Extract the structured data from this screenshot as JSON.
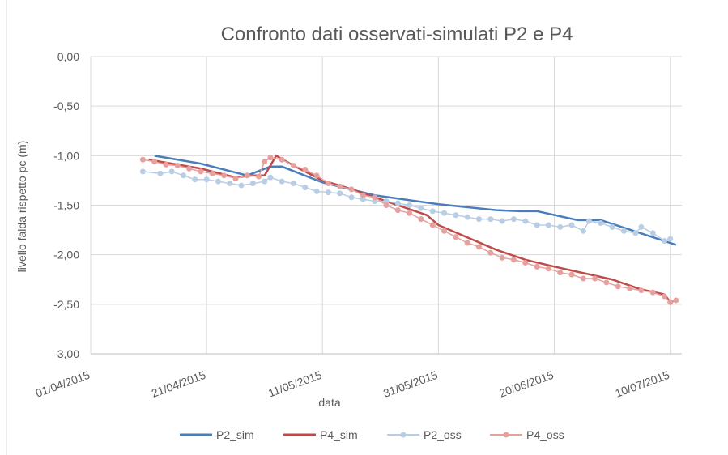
{
  "chart_data": {
    "type": "line",
    "title": "Confronto dati osservati-simulati P2 e P4",
    "x_label": "data",
    "y_label": "livello falda rispetto pc (m)",
    "xlim": [
      "01/04/2015",
      "12/07/2015"
    ],
    "xticks": [
      "01/04/2015",
      "21/04/2015",
      "11/05/2015",
      "31/05/2015",
      "20/06/2015",
      "10/07/2015"
    ],
    "ylim": [
      -3,
      0
    ],
    "yticks": [
      {
        "value": 0,
        "label": "0,00"
      },
      {
        "value": -0.5,
        "label": "-0,50"
      },
      {
        "value": -1,
        "label": "-1,00"
      },
      {
        "value": -1.5,
        "label": "-1,50"
      },
      {
        "value": -2,
        "label": "-2,00"
      },
      {
        "value": -2.5,
        "label": "-2,50"
      },
      {
        "value": -3,
        "label": "-3,00"
      }
    ],
    "grid": true,
    "legend": "bottom",
    "series": [
      {
        "name": "P2_sim",
        "color": "#4a7ebb",
        "marker": false,
        "x": [
          "12/04/2015",
          "20/04/2015",
          "28/04/2015",
          "02/05/2015",
          "04/05/2015",
          "11/05/2015",
          "20/05/2015",
          "31/05/2015",
          "10/06/2015",
          "14/06/2015",
          "17/06/2015",
          "24/06/2015",
          "28/06/2015",
          "11/07/2015"
        ],
        "values": [
          -1.0,
          -1.08,
          -1.2,
          -1.11,
          -1.11,
          -1.27,
          -1.4,
          -1.49,
          -1.55,
          -1.56,
          -1.56,
          -1.65,
          -1.65,
          -1.9
        ]
      },
      {
        "name": "P4_sim",
        "color": "#be4b48",
        "marker": false,
        "x": [
          "11/04/2015",
          "20/04/2015",
          "26/04/2015",
          "29/04/2015",
          "01/05/2015",
          "03/05/2015",
          "06/05/2015",
          "11/05/2015",
          "15/05/2015",
          "20/05/2015",
          "25/05/2015",
          "29/05/2015",
          "31/05/2015",
          "10/06/2015",
          "15/06/2015",
          "20/06/2015",
          "30/06/2015",
          "05/07/2015",
          "09/07/2015",
          "10/07/2015",
          "11/07/2015"
        ],
        "values": [
          -1.04,
          -1.13,
          -1.22,
          -1.2,
          -1.2,
          -1.0,
          -1.1,
          -1.25,
          -1.32,
          -1.42,
          -1.52,
          -1.6,
          -1.7,
          -1.95,
          -2.05,
          -2.12,
          -2.25,
          -2.35,
          -2.4,
          -2.48,
          -2.46
        ]
      },
      {
        "name": "P2_oss",
        "color": "#b9cde5",
        "marker": true,
        "x": [
          "10/04/2015",
          "13/04/2015",
          "15/04/2015",
          "17/04/2015",
          "19/04/2015",
          "21/04/2015",
          "23/04/2015",
          "25/04/2015",
          "27/04/2015",
          "29/04/2015",
          "01/05/2015",
          "02/05/2015",
          "04/05/2015",
          "06/05/2015",
          "08/05/2015",
          "10/05/2015",
          "12/05/2015",
          "14/05/2015",
          "16/05/2015",
          "18/05/2015",
          "20/05/2015",
          "22/05/2015",
          "24/05/2015",
          "26/05/2015",
          "28/05/2015",
          "30/05/2015",
          "01/06/2015",
          "03/06/2015",
          "05/06/2015",
          "07/06/2015",
          "09/06/2015",
          "11/06/2015",
          "13/06/2015",
          "15/06/2015",
          "17/06/2015",
          "19/06/2015",
          "21/06/2015",
          "23/06/2015",
          "25/06/2015",
          "26/06/2015",
          "28/06/2015",
          "30/06/2015",
          "02/07/2015",
          "04/07/2015",
          "05/07/2015",
          "07/07/2015",
          "09/07/2015",
          "10/07/2015"
        ],
        "values": [
          -1.16,
          -1.18,
          -1.16,
          -1.2,
          -1.24,
          -1.24,
          -1.26,
          -1.28,
          -1.3,
          -1.28,
          -1.26,
          -1.22,
          -1.26,
          -1.28,
          -1.32,
          -1.36,
          -1.37,
          -1.38,
          -1.42,
          -1.44,
          -1.46,
          -1.46,
          -1.48,
          -1.5,
          -1.53,
          -1.56,
          -1.58,
          -1.6,
          -1.62,
          -1.64,
          -1.64,
          -1.66,
          -1.64,
          -1.66,
          -1.7,
          -1.7,
          -1.72,
          -1.7,
          -1.76,
          -1.66,
          -1.68,
          -1.72,
          -1.76,
          -1.78,
          -1.72,
          -1.78,
          -1.86,
          -1.84
        ]
      },
      {
        "name": "P4_oss",
        "color": "#e6a09e",
        "marker": true,
        "x": [
          "10/04/2015",
          "12/04/2015",
          "14/04/2015",
          "16/04/2015",
          "18/04/2015",
          "20/04/2015",
          "22/04/2015",
          "24/04/2015",
          "26/04/2015",
          "28/04/2015",
          "30/04/2015",
          "01/05/2015",
          "02/05/2015",
          "04/05/2015",
          "06/05/2015",
          "08/05/2015",
          "10/05/2015",
          "12/05/2015",
          "14/05/2015",
          "16/05/2015",
          "18/05/2015",
          "20/05/2015",
          "22/05/2015",
          "24/05/2015",
          "26/05/2015",
          "28/05/2015",
          "30/05/2015",
          "01/06/2015",
          "03/06/2015",
          "05/06/2015",
          "07/06/2015",
          "09/06/2015",
          "11/06/2015",
          "13/06/2015",
          "15/06/2015",
          "17/06/2015",
          "19/06/2015",
          "21/06/2015",
          "23/06/2015",
          "25/06/2015",
          "27/06/2015",
          "29/06/2015",
          "01/07/2015",
          "03/07/2015",
          "05/07/2015",
          "07/07/2015",
          "09/07/2015",
          "10/07/2015",
          "11/07/2015"
        ],
        "values": [
          -1.04,
          -1.06,
          -1.09,
          -1.1,
          -1.13,
          -1.16,
          -1.18,
          -1.2,
          -1.23,
          -1.2,
          -1.21,
          -1.06,
          -1.02,
          -1.04,
          -1.1,
          -1.14,
          -1.2,
          -1.28,
          -1.31,
          -1.34,
          -1.4,
          -1.42,
          -1.5,
          -1.55,
          -1.58,
          -1.64,
          -1.7,
          -1.76,
          -1.82,
          -1.88,
          -1.92,
          -1.98,
          -2.03,
          -2.05,
          -2.08,
          -2.12,
          -2.14,
          -2.18,
          -2.2,
          -2.24,
          -2.24,
          -2.28,
          -2.32,
          -2.34,
          -2.36,
          -2.38,
          -2.42,
          -2.48,
          -2.46
        ]
      }
    ]
  }
}
